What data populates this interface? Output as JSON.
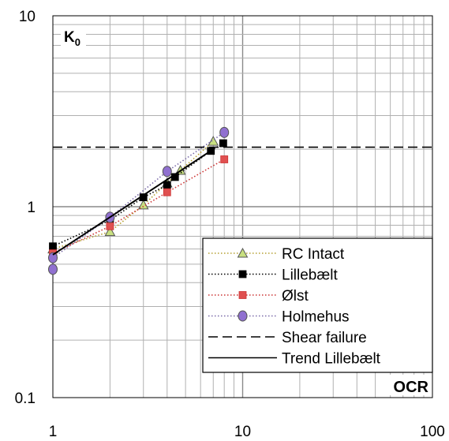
{
  "chart_data": {
    "type": "scatter",
    "title": "",
    "xlabel": "OCR",
    "ylabel": "K0",
    "ylabel_main": "K",
    "ylabel_sub": "0",
    "x_scale": "log",
    "y_scale": "log",
    "xlim": [
      1,
      100
    ],
    "ylim": [
      0.1,
      10
    ],
    "x_tick_labels": [
      "1",
      "10",
      "100"
    ],
    "y_tick_labels": [
      "0.1",
      "1",
      "10"
    ],
    "grid": true,
    "legend_position": "bottom-right",
    "series": [
      {
        "name": "RC Intact",
        "color": "#b5a032",
        "marker": "triangle",
        "marker_fill": "#c8e080",
        "line": "dotted",
        "points": [
          [
            1,
            0.6
          ],
          [
            2,
            0.74
          ],
          [
            3,
            1.02
          ],
          [
            4,
            1.33
          ],
          [
            4.7,
            1.55
          ],
          [
            7,
            2.2
          ]
        ]
      },
      {
        "name": "Lillebælt",
        "color": "#000000",
        "marker": "square",
        "marker_fill": "#000000",
        "line": "dotted",
        "points": [
          [
            1,
            0.62
          ],
          [
            2,
            0.85
          ],
          [
            3,
            1.12
          ],
          [
            4,
            1.3
          ],
          [
            4.4,
            1.43
          ],
          [
            6.8,
            1.96
          ],
          [
            7.9,
            2.15
          ]
        ]
      },
      {
        "name": "Ølst",
        "color": "#cc3333",
        "marker": "square",
        "marker_fill": "#e05050",
        "line": "dotted",
        "points": [
          [
            1,
            0.57
          ],
          [
            2,
            0.79
          ],
          [
            4,
            1.19
          ],
          [
            8,
            1.77
          ]
        ]
      },
      {
        "name": "Holmehus",
        "color": "#7a6aa8",
        "marker": "circle",
        "marker_fill": "#9070d0",
        "line": "dotted",
        "points": [
          [
            1,
            0.47
          ],
          [
            1,
            0.54
          ],
          [
            2,
            0.88
          ],
          [
            4,
            1.53
          ],
          [
            8,
            2.45
          ]
        ]
      },
      {
        "name": "Shear failure",
        "color": "#000000",
        "marker": "none",
        "line": "dashed",
        "points": [
          [
            1,
            2.05
          ],
          [
            100,
            2.05
          ]
        ]
      },
      {
        "name": "Trend Lillebælt",
        "color": "#000000",
        "marker": "none",
        "line": "solid",
        "points": [
          [
            1,
            0.56
          ],
          [
            7,
            2.0
          ]
        ]
      }
    ]
  }
}
